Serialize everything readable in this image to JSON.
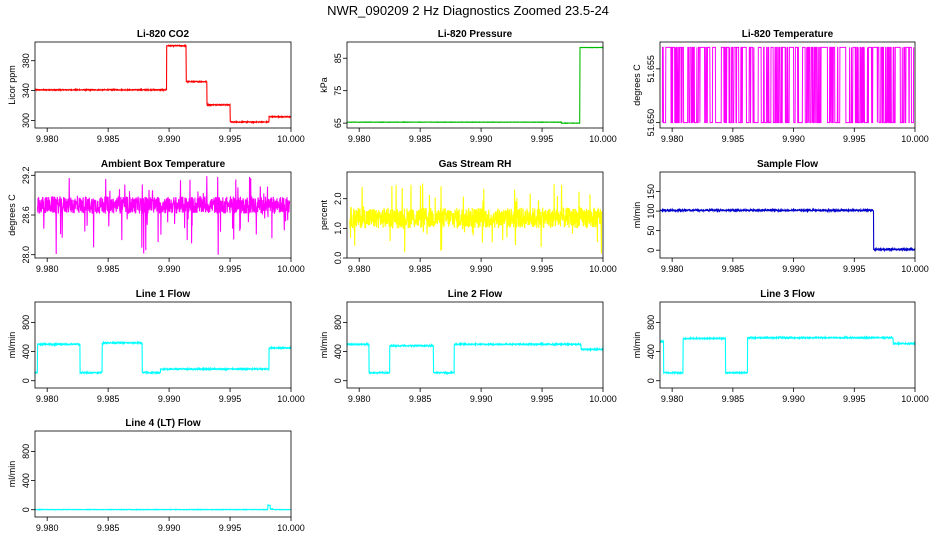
{
  "page": {
    "title": "NWR_090209  2 Hz Diagnostics Zoomed 23.5-24"
  },
  "chart_data": [
    {
      "type": "line",
      "title": "Li-820 CO2",
      "ylabel": "Licor ppm",
      "color": "#ff0000",
      "x_range": [
        9.979,
        10.0
      ],
      "xticks": [
        9.98,
        9.985,
        9.99,
        9.995,
        10.0
      ],
      "xtick_labels": [
        "9.980",
        "9.985",
        "9.990",
        "9.995",
        "10.000"
      ],
      "ylim": [
        290,
        405
      ],
      "yticks": [
        300,
        340,
        380
      ],
      "ytick_labels": [
        "300",
        "340",
        "380"
      ],
      "noise": 0.6,
      "segments": [
        [
          9.979,
          341
        ],
        [
          9.9898,
          400
        ],
        [
          9.9914,
          352
        ],
        [
          9.9931,
          321
        ],
        [
          9.995,
          298
        ],
        [
          9.9982,
          305
        ]
      ]
    },
    {
      "type": "line",
      "title": "Li-820 Pressure",
      "ylabel": "kPa",
      "color": "#00bb00",
      "x_range": [
        9.979,
        10.0
      ],
      "xticks": [
        9.98,
        9.985,
        9.99,
        9.995,
        10.0
      ],
      "xtick_labels": [
        "9.980",
        "9.985",
        "9.990",
        "9.995",
        "10.000"
      ],
      "ylim": [
        63.5,
        90
      ],
      "yticks": [
        65,
        75,
        85
      ],
      "ytick_labels": [
        "65",
        "75",
        "85"
      ],
      "noise": 0.05,
      "segments": [
        [
          9.979,
          65.3
        ],
        [
          9.9966,
          65.0
        ],
        [
          9.9981,
          88.3
        ]
      ]
    },
    {
      "type": "binary",
      "title": "Li-820 Temperature",
      "ylabel": "degrees C",
      "color": "#ff00ff",
      "x_range": [
        9.979,
        10.0
      ],
      "xticks": [
        9.98,
        9.985,
        9.99,
        9.995,
        10.0
      ],
      "xtick_labels": [
        "9.980",
        "9.985",
        "9.990",
        "9.995",
        "10.000"
      ],
      "ylim": [
        51.6495,
        51.6575
      ],
      "yticks": [
        51.65,
        51.655
      ],
      "ytick_labels": [
        "51.650",
        "51.655"
      ],
      "low": 51.65,
      "high": 51.657
    },
    {
      "type": "noise",
      "title": "Ambient Box Temperature",
      "ylabel": "degrees C",
      "color": "#ff00ff",
      "x_range": [
        9.979,
        10.0
      ],
      "xticks": [
        9.98,
        9.985,
        9.99,
        9.995,
        10.0
      ],
      "xtick_labels": [
        "9.980",
        "9.985",
        "9.990",
        "9.995",
        "10.000"
      ],
      "ylim": [
        27.95,
        29.25
      ],
      "yticks": [
        28.0,
        28.6,
        29.2
      ],
      "ytick_labels": [
        "28.0",
        "28.6",
        "29.2"
      ],
      "center": 28.75,
      "amp": 0.13,
      "spike": 0.45,
      "spike_down": 0.75
    },
    {
      "type": "noise",
      "title": "Gas Stream RH",
      "ylabel": "percent",
      "color": "#ffff00",
      "x_range": [
        9.979,
        10.0
      ],
      "xticks": [
        9.98,
        9.985,
        9.99,
        9.995,
        10.0
      ],
      "xtick_labels": [
        "9.980",
        "9.985",
        "9.990",
        "9.995",
        "10.000"
      ],
      "ylim": [
        0,
        2.9
      ],
      "yticks": [
        0.0,
        1.0,
        2.0
      ],
      "ytick_labels": [
        "0.0",
        "1.0",
        "2.0"
      ],
      "center": 1.35,
      "amp": 0.35,
      "spike": 1.2,
      "spike_down": 1.2
    },
    {
      "type": "line",
      "title": "Sample Flow",
      "ylabel": "ml/min",
      "color": "#0000cc",
      "x_range": [
        9.979,
        10.0
      ],
      "xticks": [
        9.98,
        9.985,
        9.99,
        9.995,
        10.0
      ],
      "xtick_labels": [
        "9.980",
        "9.985",
        "9.990",
        "9.995",
        "10.000"
      ],
      "ylim": [
        -20,
        200
      ],
      "yticks": [
        0,
        50,
        100,
        150
      ],
      "ytick_labels": [
        "0",
        "50",
        "100",
        "150"
      ],
      "noise": 2,
      "segments": [
        [
          9.979,
          102
        ],
        [
          9.9966,
          2
        ]
      ]
    },
    {
      "type": "line",
      "title": "Line 1 Flow",
      "ylabel": "ml/min",
      "color": "#00ffff",
      "x_range": [
        9.979,
        10.0
      ],
      "xticks": [
        9.98,
        9.985,
        9.99,
        9.995,
        10.0
      ],
      "xtick_labels": [
        "9.980",
        "9.985",
        "9.990",
        "9.995",
        "10.000"
      ],
      "ylim": [
        -100,
        1080
      ],
      "yticks": [
        0,
        400,
        800
      ],
      "ytick_labels": [
        "0",
        "400",
        "800"
      ],
      "noise": 8,
      "segments": [
        [
          9.979,
          110
        ],
        [
          9.9792,
          500
        ],
        [
          9.9827,
          110
        ],
        [
          9.9845,
          520
        ],
        [
          9.9878,
          110
        ],
        [
          9.9893,
          160
        ],
        [
          9.9982,
          450
        ]
      ]
    },
    {
      "type": "line",
      "title": "Line 2 Flow",
      "ylabel": "ml/min",
      "color": "#00ffff",
      "x_range": [
        9.979,
        10.0
      ],
      "xticks": [
        9.98,
        9.985,
        9.99,
        9.995,
        10.0
      ],
      "xtick_labels": [
        "9.980",
        "9.985",
        "9.990",
        "9.995",
        "10.000"
      ],
      "ylim": [
        -100,
        1080
      ],
      "yticks": [
        0,
        400,
        800
      ],
      "ytick_labels": [
        "0",
        "400",
        "800"
      ],
      "noise": 8,
      "segments": [
        [
          9.979,
          500
        ],
        [
          9.9808,
          110
        ],
        [
          9.9825,
          480
        ],
        [
          9.9861,
          110
        ],
        [
          9.9878,
          500
        ],
        [
          9.9982,
          430
        ]
      ]
    },
    {
      "type": "line",
      "title": "Line 3 Flow",
      "ylabel": "ml/min",
      "color": "#00ffff",
      "x_range": [
        9.979,
        10.0
      ],
      "xticks": [
        9.98,
        9.985,
        9.99,
        9.995,
        10.0
      ],
      "xtick_labels": [
        "9.980",
        "9.985",
        "9.990",
        "9.995",
        "10.000"
      ],
      "ylim": [
        -100,
        1080
      ],
      "yticks": [
        0,
        400,
        800
      ],
      "ytick_labels": [
        "0",
        "400",
        "800"
      ],
      "noise": 8,
      "segments": [
        [
          9.979,
          540
        ],
        [
          9.9793,
          110
        ],
        [
          9.9809,
          580
        ],
        [
          9.9844,
          110
        ],
        [
          9.9862,
          590
        ],
        [
          9.9982,
          510
        ]
      ]
    },
    {
      "type": "line",
      "title": "Line 4 (LT) Flow",
      "ylabel": "ml/min",
      "color": "#00ffff",
      "x_range": [
        9.979,
        10.0
      ],
      "xticks": [
        9.98,
        9.985,
        9.99,
        9.995,
        10.0
      ],
      "xtick_labels": [
        "9.980",
        "9.985",
        "9.990",
        "9.995",
        "10.000"
      ],
      "ylim": [
        -100,
        1080
      ],
      "yticks": [
        0,
        400,
        800
      ],
      "ytick_labels": [
        "0",
        "400",
        "800"
      ],
      "noise": 3,
      "segments": [
        [
          9.979,
          2
        ],
        [
          9.9981,
          60
        ],
        [
          9.9983,
          8
        ],
        [
          9.9985,
          2
        ]
      ]
    }
  ]
}
